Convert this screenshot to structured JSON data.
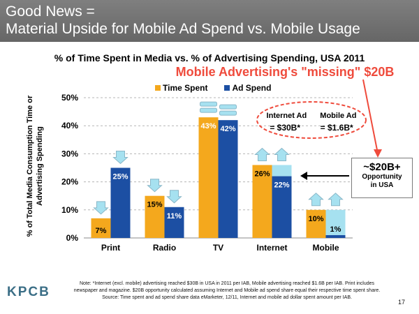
{
  "header": {
    "line1": "Good News =",
    "line2": "Material Upside for Mobile Ad Spend vs. Mobile Usage"
  },
  "callout": "Mobile Advertising's \"missing\" $20B",
  "ellipse": {
    "internet_ad_label": "Internet Ad",
    "mobile_ad_label": "Mobile Ad",
    "internet_ad_value": "= $30B*",
    "mobile_ad_value": "= $1.6B*"
  },
  "side_box": {
    "big": "~$20B+",
    "line1": "Opportunity",
    "line2": "in USA"
  },
  "footer": {
    "logo": "KPCB",
    "note": "Note: *Internet (excl. mobile) advertising reached $30B in USA in 2011 per IAB, Mobile advertising reached $1.6B per IAB. Print includes newspaper and magazine. $20B opportunity calculated assuming Internet and Mobile ad spend share equal their respective time spent share. Source: Time spent and ad spend share data eMarketer, 12/11, Internet and mobile ad dollar spent amount per IAB.",
    "page": "17"
  },
  "colors": {
    "time_spent": "#f4a81d",
    "ad_spend": "#1c4fa3",
    "gap": "#a6e1f0",
    "arrow": "#a6e1f0",
    "callout": "#ef4b3c"
  },
  "chart_data": {
    "type": "bar",
    "title": "% of Time Spent in Media vs. % of Advertising Spending, USA 2011",
    "ylabel": "% of Total Media Consumption Time or Advertising Spending",
    "xlabel": "",
    "ylim": [
      0,
      50
    ],
    "yticks": [
      "0%",
      "10%",
      "20%",
      "30%",
      "40%",
      "50%"
    ],
    "ytick_values": [
      0,
      10,
      20,
      30,
      40,
      50
    ],
    "grid": true,
    "legend": "top-center",
    "categories": [
      "Print",
      "Radio",
      "TV",
      "Internet",
      "Mobile"
    ],
    "series": [
      {
        "name": "Time Spent",
        "values": [
          7,
          15,
          43,
          26,
          10
        ],
        "labels": [
          "7%",
          "15%",
          "43%",
          "26%",
          "10%"
        ]
      },
      {
        "name": "Ad Spend",
        "values": [
          25,
          11,
          42,
          22,
          1
        ],
        "labels": [
          "25%",
          "11%",
          "42%",
          "22%",
          "1%"
        ]
      }
    ],
    "annotations": [
      "down",
      "down",
      "equal",
      "up",
      "up"
    ]
  }
}
